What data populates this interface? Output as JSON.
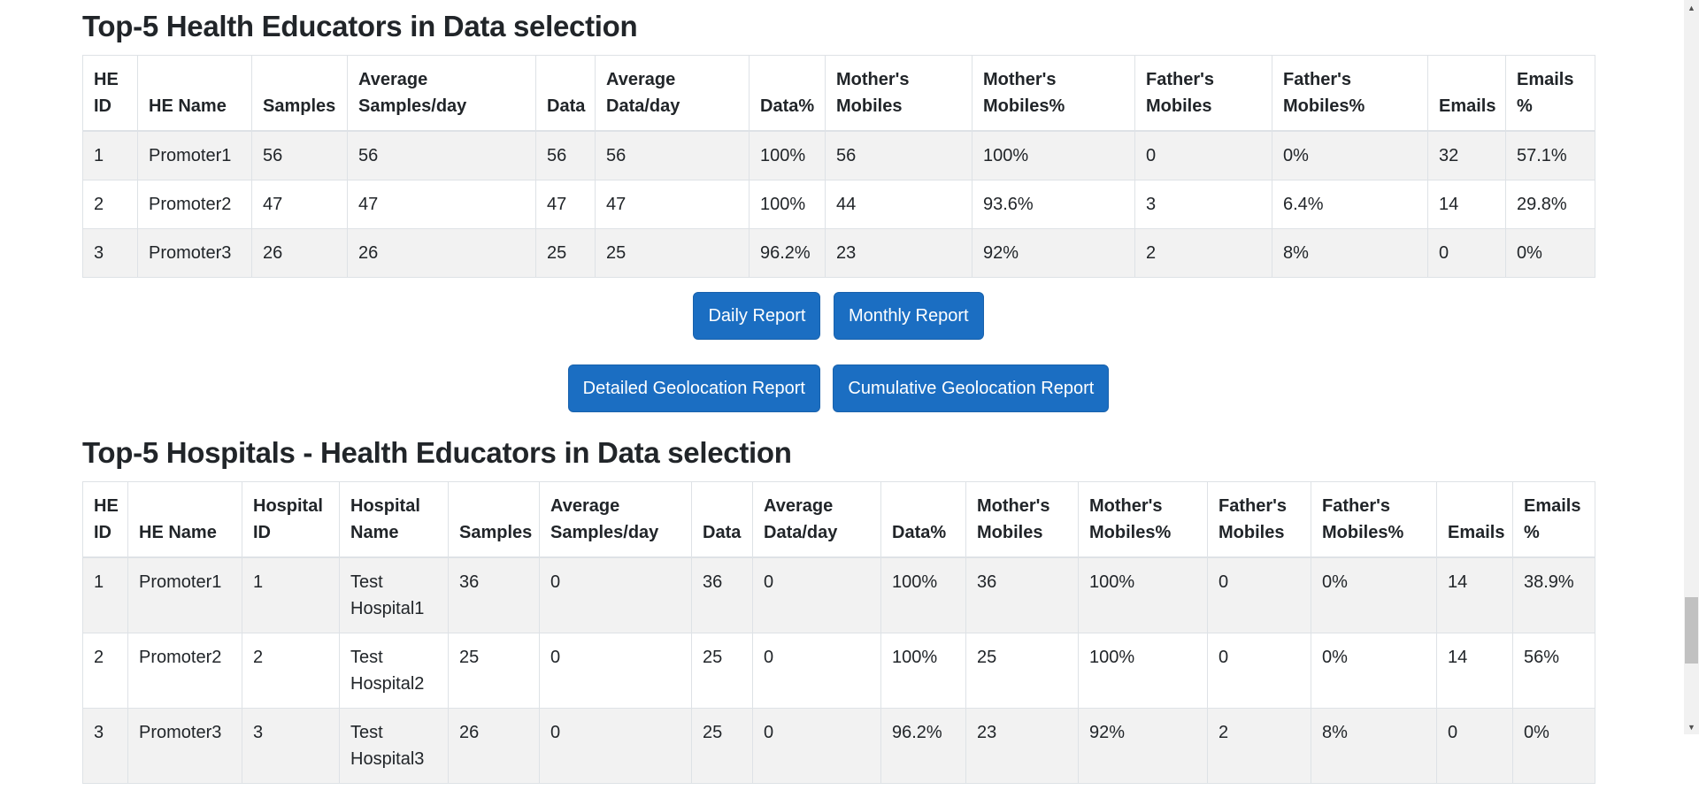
{
  "theme": {
    "accent": "#1b6ec2",
    "accent_border": "#1861ac",
    "table_border": "#dee2e6",
    "stripe": "#f2f2f2",
    "text": "#212529"
  },
  "sections": {
    "educators": {
      "title": "Top-5 Health Educators in Data selection",
      "table": {
        "headers": [
          "HE ID",
          "HE Name",
          "Samples",
          "Average Samples/day",
          "Data",
          "Average Data/day",
          "Data%",
          "Mother's Mobiles",
          "Mother's Mobiles%",
          "Father's Mobiles",
          "Father's Mobiles%",
          "Emails",
          "Emails %"
        ],
        "rows": [
          [
            "1",
            "Promoter1",
            "56",
            "56",
            "56",
            "56",
            "100%",
            "56",
            "100%",
            "0",
            "0%",
            "32",
            "57.1%"
          ],
          [
            "2",
            "Promoter2",
            "47",
            "47",
            "47",
            "47",
            "100%",
            "44",
            "93.6%",
            "3",
            "6.4%",
            "14",
            "29.8%"
          ],
          [
            "3",
            "Promoter3",
            "26",
            "26",
            "25",
            "25",
            "96.2%",
            "23",
            "92%",
            "2",
            "8%",
            "0",
            "0%"
          ]
        ]
      }
    },
    "hospitals": {
      "title": "Top-5 Hospitals - Health Educators in Data selection",
      "table": {
        "headers": [
          "HE ID",
          "HE Name",
          "Hospital ID",
          "Hospital Name",
          "Samples",
          "Average Samples/day",
          "Data",
          "Average Data/day",
          "Data%",
          "Mother's Mobiles",
          "Mother's Mobiles%",
          "Father's Mobiles",
          "Father's Mobiles%",
          "Emails",
          "Emails %"
        ],
        "rows": [
          [
            "1",
            "Promoter1",
            "1",
            "Test Hospital1",
            "36",
            "0",
            "36",
            "0",
            "100%",
            "36",
            "100%",
            "0",
            "0%",
            "14",
            "38.9%"
          ],
          [
            "2",
            "Promoter2",
            "2",
            "Test Hospital2",
            "25",
            "0",
            "25",
            "0",
            "100%",
            "25",
            "100%",
            "0",
            "0%",
            "14",
            "56%"
          ],
          [
            "3",
            "Promoter3",
            "3",
            "Test Hospital3",
            "26",
            "0",
            "25",
            "0",
            "96.2%",
            "23",
            "92%",
            "2",
            "8%",
            "0",
            "0%"
          ]
        ]
      }
    }
  },
  "buttons": {
    "daily": "Daily Report",
    "monthly": "Monthly Report",
    "detailed_geo": "Detailed Geolocation Report",
    "cumulative_geo": "Cumulative Geolocation Report"
  },
  "scrollbar": {
    "up_icon": "▲",
    "down_icon": "▼"
  }
}
